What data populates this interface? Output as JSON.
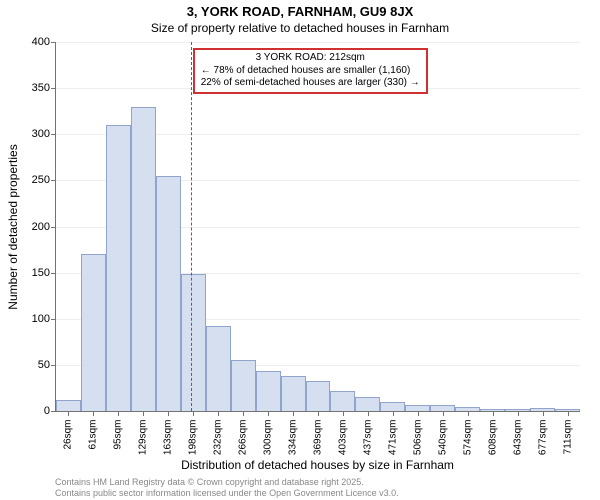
{
  "title_line1": "3, YORK ROAD, FARNHAM, GU9 8JX",
  "title_line2": "Size of property relative to detached houses in Farnham",
  "ylabel": "Number of detached properties",
  "xlabel": "Distribution of detached houses by size in Farnham",
  "footer_line1": "Contains HM Land Registry data © Crown copyright and database right 2025.",
  "footer_line2": "Contains public sector information licensed under the Open Government Licence v3.0.",
  "chart": {
    "type": "histogram",
    "background_color": "#ffffff",
    "grid_color": "#eeeeee",
    "axis_color": "#737373",
    "bar_fill": "#d6dff0",
    "bar_stroke": "#90a4cc",
    "reference_line_color": "#d03030",
    "annotation_border_color": "#d03030",
    "ylim": [
      0,
      400
    ],
    "ytick_step": 50,
    "yticks": [
      0,
      50,
      100,
      150,
      200,
      250,
      300,
      350,
      400
    ],
    "x_categories": [
      "26sqm",
      "61sqm",
      "95sqm",
      "129sqm",
      "163sqm",
      "198sqm",
      "232sqm",
      "266sqm",
      "300sqm",
      "334sqm",
      "369sqm",
      "403sqm",
      "437sqm",
      "471sqm",
      "506sqm",
      "540sqm",
      "574sqm",
      "608sqm",
      "643sqm",
      "677sqm",
      "711sqm"
    ],
    "values": [
      12,
      170,
      310,
      330,
      255,
      148,
      92,
      55,
      43,
      38,
      32,
      22,
      15,
      10,
      6,
      6,
      4,
      2,
      2,
      3,
      2
    ],
    "reference_index": 5.4,
    "bar_width_ratio": 1.0,
    "title_fontsize": 13,
    "subtitle_fontsize": 12,
    "label_fontsize": 12,
    "tick_fontsize": 11,
    "xtick_fontsize": 10,
    "annotation_fontsize": 10
  },
  "annotation": {
    "line1": "3 YORK ROAD: 212sqm",
    "line2": "← 78% of detached houses are smaller (1,160)",
    "line3": "22% of semi-detached houses are larger (330) →"
  }
}
